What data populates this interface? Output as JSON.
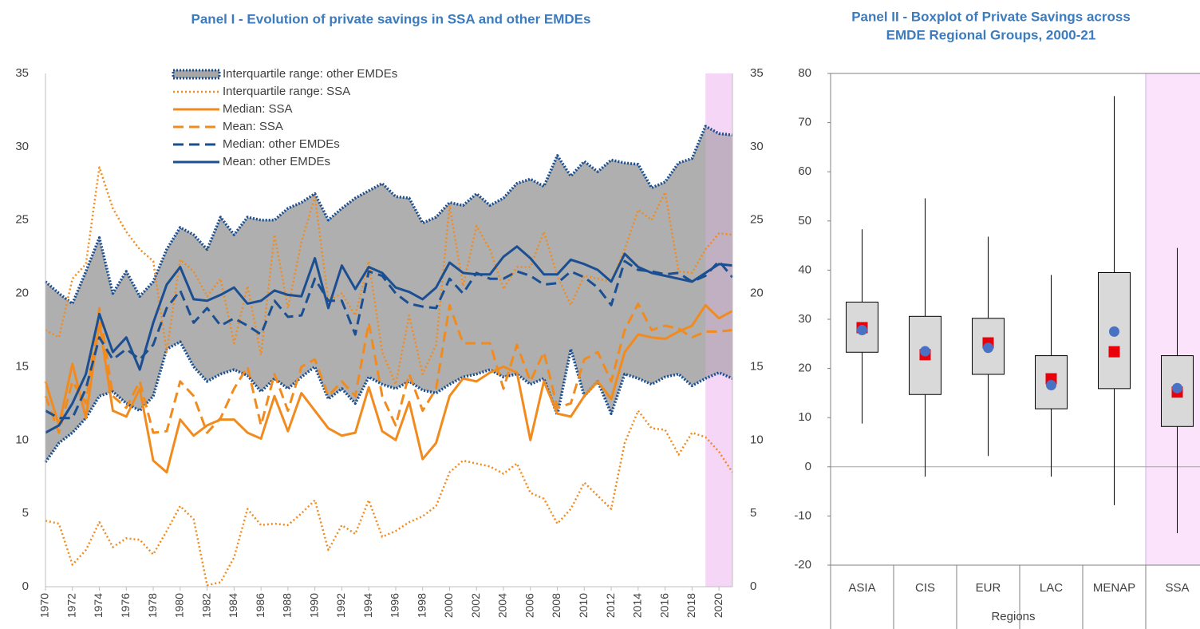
{
  "chart_data": [
    {
      "type": "line",
      "title": "Panel I - Evolution of private savings in SSA and other EMDEs",
      "x": [
        1970,
        1971,
        1972,
        1973,
        1974,
        1975,
        1976,
        1977,
        1978,
        1979,
        1980,
        1981,
        1982,
        1983,
        1984,
        1985,
        1986,
        1987,
        1988,
        1989,
        1990,
        1991,
        1992,
        1993,
        1994,
        1995,
        1996,
        1997,
        1998,
        1999,
        2000,
        2001,
        2002,
        2003,
        2004,
        2005,
        2006,
        2007,
        2008,
        2009,
        2010,
        2011,
        2012,
        2013,
        2014,
        2015,
        2016,
        2017,
        2018,
        2019,
        2020,
        2021
      ],
      "xlim": [
        1970,
        2021
      ],
      "xticks": [
        1970,
        1972,
        1974,
        1976,
        1978,
        1980,
        1982,
        1984,
        1986,
        1988,
        1990,
        1992,
        1994,
        1996,
        1998,
        2000,
        2002,
        2004,
        2006,
        2008,
        2010,
        2012,
        2014,
        2016,
        2018,
        2020
      ],
      "ylim": [
        0,
        35
      ],
      "yticks": [
        0,
        5,
        10,
        15,
        20,
        25,
        30,
        35
      ],
      "y2lim": [
        0,
        35
      ],
      "y2ticks": [
        0,
        5,
        10,
        15,
        20,
        25,
        30,
        35
      ],
      "shaded_x": [
        2019,
        2021
      ],
      "series": [
        {
          "name": "Interquartile range: other EMDEs",
          "color": "#1b4f91",
          "fill": "#a6a6a6",
          "style": "band",
          "values": [
            20.8,
            20,
            19.3,
            21.5,
            23.8,
            20,
            21.5,
            19.8,
            20.8,
            23,
            24.5,
            24,
            23,
            25.2,
            24,
            25.2,
            25,
            25,
            25.8,
            26.2,
            26.8,
            25,
            25.8,
            26.5,
            27,
            27.5,
            26.6,
            26.5,
            24.8,
            25.2,
            26.2,
            26,
            26.8,
            26,
            26.5,
            27.5,
            27.8,
            27.3,
            29.4,
            28,
            29,
            28.3,
            29.1,
            28.9,
            28.8,
            27.2,
            27.6,
            28.9,
            29.2,
            31.4,
            30.9,
            30.8
          ],
          "lower": [
            8.5,
            9.8,
            10.5,
            11.5,
            13,
            13.3,
            12.5,
            12,
            13,
            16.2,
            16.7,
            15,
            14,
            14.5,
            14.8,
            14.4,
            13.3,
            14.2,
            13.5,
            14.3,
            15,
            12.8,
            13.5,
            12.5,
            14.3,
            13.8,
            13.5,
            14,
            13.4,
            13.2,
            13.8,
            14.3,
            14.5,
            14.8,
            14.3,
            14.5,
            13.8,
            14.2,
            11.7,
            16.2,
            13,
            14,
            11.8,
            14.5,
            14.2,
            13.8,
            14.3,
            14.5,
            13.7,
            14.2,
            14.6,
            14.2
          ]
        },
        {
          "name": "Interquartile range: SSA",
          "color": "#f28b1e",
          "style": "dotted",
          "values": [
            17.5,
            17,
            21,
            22,
            28.6,
            25.8,
            24.2,
            23,
            22.2,
            16,
            22.3,
            21.5,
            19.8,
            21,
            16.6,
            20.5,
            15.8,
            24,
            19,
            23.5,
            26.6,
            19.5,
            20,
            18.5,
            22.2,
            16,
            13.8,
            18.5,
            14.5,
            16.5,
            26,
            20.5,
            24.6,
            23,
            20.3,
            21.8,
            21.8,
            24.2,
            21.2,
            19.2,
            21.2,
            21,
            20.8,
            23,
            25.7,
            25,
            26.9,
            21.5,
            21.4,
            23,
            24.1,
            24
          ],
          "lower": [
            4.5,
            4.3,
            1.5,
            2.5,
            4.4,
            2.7,
            3.3,
            3.2,
            2.2,
            3.8,
            5.5,
            4.6,
            0.1,
            0.3,
            2,
            5.3,
            4.2,
            4.3,
            4.2,
            5,
            5.9,
            2.5,
            4.2,
            3.6,
            5.9,
            3.4,
            3.8,
            4.4,
            4.8,
            5.5,
            7.8,
            8.6,
            8.4,
            8.2,
            7.7,
            8.4,
            6.4,
            6,
            4.3,
            5.3,
            7.1,
            6.2,
            5.3,
            9.8,
            12,
            10.8,
            10.7,
            9,
            10.5,
            10.2,
            9.2,
            7.8
          ]
        },
        {
          "name": "Median: SSA",
          "color": "#f28b1e",
          "style": "solid",
          "values": [
            14,
            11,
            15.2,
            11.5,
            18,
            12,
            11.6,
            13.5,
            8.6,
            7.8,
            11.4,
            10.3,
            11,
            11.4,
            11.4,
            10.5,
            10.1,
            13,
            10.6,
            13.2,
            12,
            10.8,
            10.3,
            10.5,
            13.6,
            10.6,
            10,
            12.6,
            8.7,
            9.8,
            13,
            14.2,
            14,
            14.6,
            15,
            14.6,
            10,
            14,
            11.8,
            11.6,
            13,
            14,
            12.8,
            16,
            17.2,
            17,
            16.9,
            17.4,
            17.8,
            19.2,
            18.3,
            18.8
          ]
        },
        {
          "name": "Mean: SSA",
          "color": "#f28b1e",
          "style": "dashed",
          "values": [
            13,
            10.5,
            14,
            12.5,
            19,
            13,
            12.2,
            14,
            10.5,
            10.6,
            14,
            13,
            10.5,
            11.5,
            13.5,
            15,
            11,
            14.5,
            12,
            15,
            15.5,
            13,
            14,
            13,
            18,
            13,
            11,
            14.5,
            12,
            13.5,
            19.2,
            16.6,
            16.6,
            16.6,
            13.5,
            16.5,
            14,
            16,
            12.2,
            12.5,
            15.5,
            16,
            14,
            17.5,
            19.3,
            17.5,
            17.8,
            17.6,
            17,
            17.4,
            17.4,
            17.5
          ]
        },
        {
          "name": "Median: other EMDEs",
          "color": "#1b4f91",
          "style": "dashed",
          "values": [
            12,
            11.5,
            11.5,
            13.5,
            17,
            15.5,
            16.2,
            15.5,
            16.5,
            19,
            20.2,
            18,
            19,
            17.8,
            18.3,
            17.8,
            17.2,
            19.5,
            18.4,
            18.5,
            21,
            19.5,
            19.5,
            17.2,
            21.5,
            21.2,
            20,
            19.3,
            19.1,
            19,
            21,
            20,
            21.4,
            21,
            21,
            21.5,
            21.2,
            20.6,
            20.7,
            21.5,
            21.1,
            20.4,
            19.2,
            22.2,
            21.6,
            21.5,
            21.3,
            21.4,
            20.8,
            21.2,
            22.2,
            21.1
          ]
        },
        {
          "name": "Mean: other EMDEs",
          "color": "#1b4f91",
          "style": "solid",
          "values": [
            10.5,
            11,
            12.5,
            14.5,
            18.6,
            16,
            17,
            14.8,
            18,
            20.6,
            21.8,
            19.6,
            19.5,
            19.9,
            20.4,
            19.3,
            19.5,
            20.2,
            19.9,
            19.8,
            22.4,
            19,
            21.9,
            20.3,
            21.8,
            21.4,
            20.4,
            20.1,
            19.6,
            20.4,
            22.1,
            21.4,
            21.3,
            21.3,
            22.5,
            23.2,
            22.4,
            21.3,
            21.3,
            22.3,
            22,
            21.6,
            20.8,
            22.7,
            21.8,
            21.4,
            21.2,
            21,
            20.8,
            21.4,
            22,
            21.9
          ]
        }
      ]
    },
    {
      "type": "box",
      "title": [
        "Panel II - Boxplot of Private Savings across",
        "EMDE Regional Groups, 2000-21"
      ],
      "categories": [
        "ASIA",
        "CIS",
        "EUR",
        "LAC",
        "MENAP",
        "SSA"
      ],
      "xlabel": "Regions",
      "ylim": [
        -20,
        80
      ],
      "yticks": [
        -20,
        -10,
        0,
        10,
        20,
        30,
        40,
        50,
        60,
        70,
        80
      ],
      "shaded_category": 5,
      "box_color": "#d9d9d9",
      "square_color": "#e8000b",
      "dot_color": "#4a72c4",
      "boxes": [
        {
          "whisker_low": 8.8,
          "q1": 23.3,
          "q3": 33.5,
          "whisker_high": 48.3,
          "square": 28.3,
          "dot": 27.8
        },
        {
          "whisker_low": -2,
          "q1": 14.7,
          "q3": 30.6,
          "whisker_high": 54.6,
          "square": 22.8,
          "dot": 23.5
        },
        {
          "whisker_low": 2.2,
          "q1": 18.8,
          "q3": 30.2,
          "whisker_high": 46.8,
          "square": 25.2,
          "dot": 24.2
        },
        {
          "whisker_low": -2,
          "q1": 11.8,
          "q3": 22.6,
          "whisker_high": 39,
          "square": 17.9,
          "dot": 16.6
        },
        {
          "whisker_low": -7.8,
          "q1": 15.9,
          "q3": 39.5,
          "whisker_high": 75.4,
          "square": 23.4,
          "dot": 27.5
        },
        {
          "whisker_low": -13.5,
          "q1": 8.2,
          "q3": 22.6,
          "whisker_high": 44.5,
          "square": 15.2,
          "dot": 16
        }
      ]
    }
  ]
}
